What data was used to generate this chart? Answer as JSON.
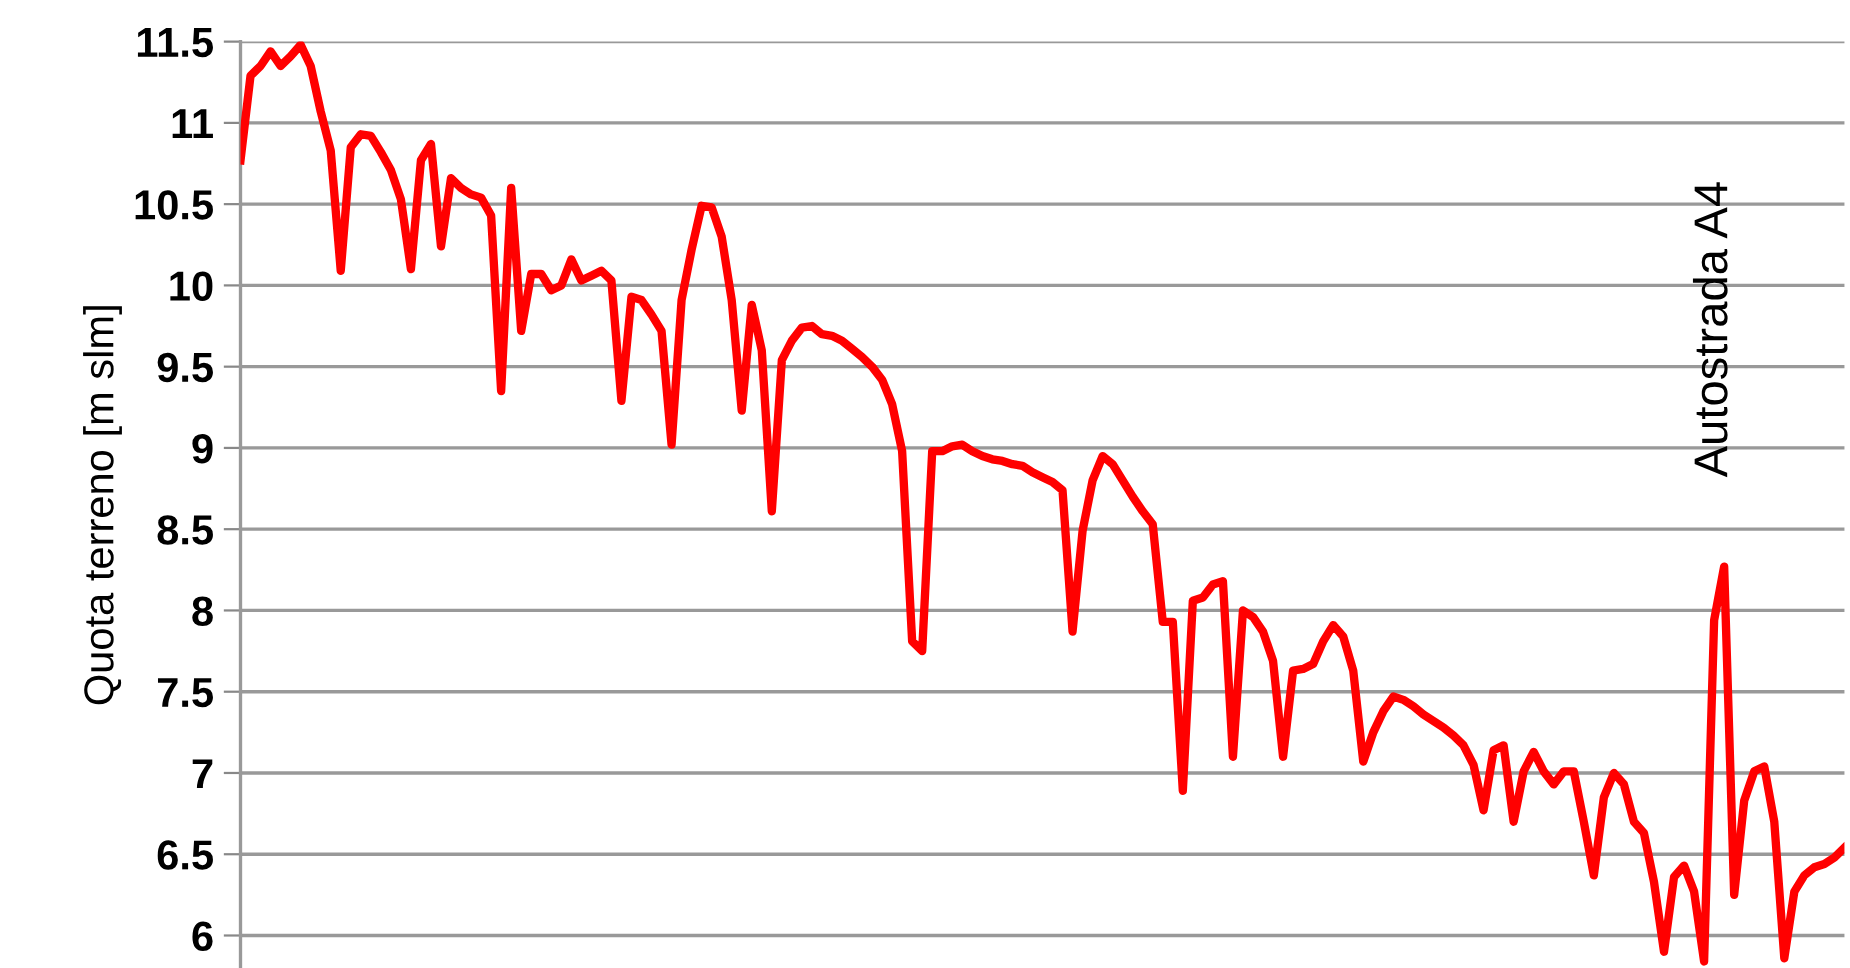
{
  "chart_data": {
    "type": "line",
    "ylabel": "Quota terreno [m slm]",
    "categories": [
      null,
      null,
      null,
      null,
      null,
      null,
      null,
      null,
      null,
      null,
      null,
      null,
      null,
      null,
      null,
      null,
      null,
      null,
      null,
      null,
      null,
      null,
      null,
      null,
      null,
      null,
      null,
      null,
      null,
      null,
      null,
      null,
      null,
      null,
      null,
      null,
      null,
      null,
      null,
      null,
      null,
      null,
      null,
      null,
      null,
      null,
      null,
      null,
      null,
      null,
      null,
      null,
      null,
      null,
      null,
      null,
      null,
      null,
      null,
      null,
      null,
      null,
      null,
      null,
      null,
      null,
      null,
      null,
      null,
      null,
      null,
      null,
      null,
      null,
      null,
      null,
      null,
      null,
      null,
      null,
      null,
      null,
      null,
      null,
      null,
      null,
      null,
      null,
      null,
      null,
      null,
      null,
      null,
      null,
      null,
      null,
      null,
      null,
      null,
      null,
      null,
      null,
      null,
      null,
      null,
      null,
      null,
      null,
      null,
      null,
      null,
      null,
      null,
      null,
      null,
      null,
      null,
      null,
      null,
      null,
      null,
      null,
      null,
      null,
      null,
      null,
      null,
      null,
      null,
      null,
      null,
      null,
      null,
      null,
      null,
      null,
      null,
      null,
      null,
      null,
      null,
      null,
      null,
      null,
      null,
      null,
      null,
      null,
      null,
      null,
      null,
      null,
      null,
      null,
      null,
      null,
      null,
      null,
      null,
      null,
      null
    ],
    "series": [
      {
        "color": "#ff0000",
        "values": [
          10.77,
          11.29,
          11.35,
          11.44,
          11.35,
          11.41,
          11.48,
          11.35,
          11.07,
          10.83,
          10.09,
          10.85,
          10.93,
          10.92,
          10.82,
          10.71,
          10.53,
          10.1,
          10.77,
          10.87,
          10.24,
          10.66,
          10.6,
          10.56,
          10.54,
          10.43,
          9.35,
          10.6,
          9.72,
          10.07,
          10.07,
          9.97,
          10.0,
          10.16,
          10.03,
          10.06,
          10.09,
          10.03,
          9.29,
          9.93,
          9.91,
          9.82,
          9.72,
          9.02,
          9.91,
          10.22,
          10.49,
          10.48,
          10.3,
          9.91,
          9.23,
          9.88,
          9.6,
          8.61,
          9.54,
          9.66,
          9.74,
          9.75,
          9.7,
          9.69,
          9.66,
          9.61,
          9.56,
          9.5,
          9.42,
          9.27,
          8.98,
          7.81,
          7.75,
          8.98,
          8.98,
          9.01,
          9.02,
          8.98,
          8.95,
          8.93,
          8.92,
          8.9,
          8.89,
          8.85,
          8.82,
          8.79,
          8.74,
          7.87,
          8.49,
          8.8,
          8.95,
          8.9,
          8.8,
          8.7,
          8.61,
          8.53,
          7.93,
          7.93,
          6.89,
          8.06,
          8.08,
          8.16,
          8.18,
          7.1,
          8.0,
          7.96,
          7.87,
          7.69,
          7.1,
          7.63,
          7.64,
          7.67,
          7.81,
          7.91,
          7.84,
          7.63,
          7.07,
          7.25,
          7.38,
          7.47,
          7.45,
          7.41,
          7.36,
          7.32,
          7.28,
          7.23,
          7.17,
          7.05,
          6.77,
          7.14,
          7.17,
          6.7,
          7.01,
          7.13,
          7.01,
          6.93,
          7.01,
          7.01,
          6.7,
          6.37,
          6.85,
          7.0,
          6.93,
          6.7,
          6.63,
          6.33,
          5.9,
          6.36,
          6.43,
          6.27,
          5.84,
          7.94,
          8.27,
          6.25,
          6.83,
          7.01,
          7.04,
          6.7,
          5.86,
          6.27,
          6.37,
          6.42,
          6.44,
          6.48,
          6.54
        ]
      }
    ],
    "ylim": [
      5.8,
      11.5
    ],
    "yticks": [
      6,
      6.5,
      7,
      7.5,
      8,
      8.5,
      9,
      9.5,
      10,
      10.5,
      11,
      11.5
    ],
    "grid": "y",
    "tick_labels": "y",
    "marker": "none",
    "line_style": "solid",
    "annotations": [
      "Autostrada A4"
    ]
  }
}
